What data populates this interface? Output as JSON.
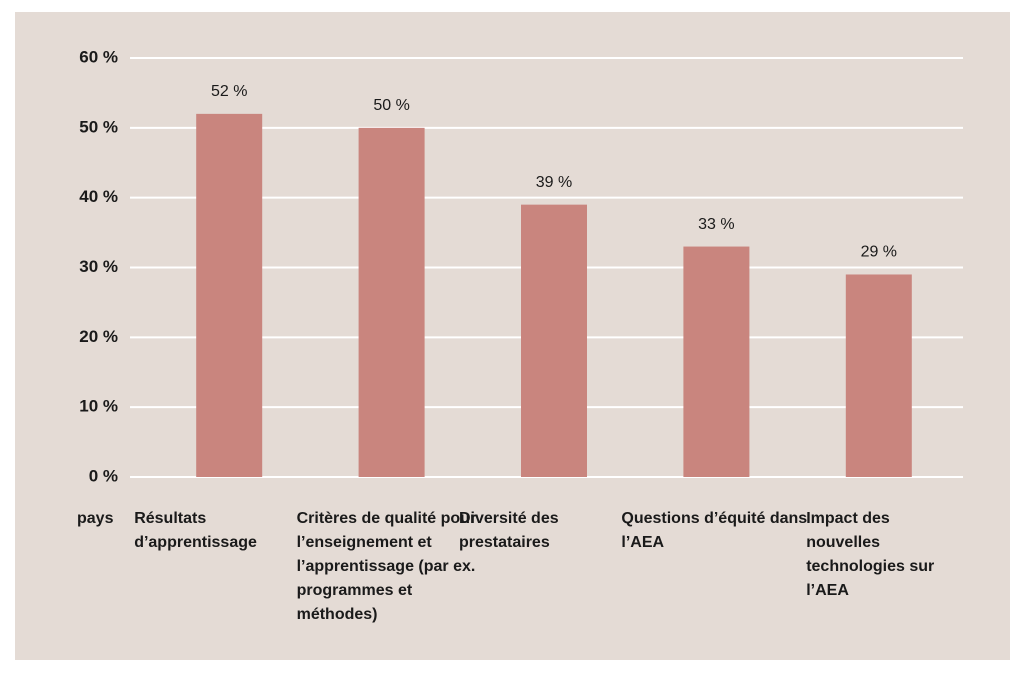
{
  "chart_data": {
    "type": "bar",
    "xlabel": "pays",
    "categories": [
      "Résultats d’apprentissage",
      "Critères de qualité pour l’enseignement et l’apprentissage (par ex. programmes et méthodes)",
      "Diversité des prestataires",
      "Questions d’équité dans l’AEA",
      "Impact des nouvelles technologies sur l’AEA"
    ],
    "values": [
      52,
      50,
      39,
      33,
      29
    ],
    "value_labels": [
      "52 %",
      "50 %",
      "39 %",
      "33 %",
      "29 %"
    ],
    "color": "#c9857e",
    "ylim": [
      0,
      60
    ],
    "yticks": [
      {
        "value": 0,
        "label": "0 %"
      },
      {
        "value": 10,
        "label": "10 %"
      },
      {
        "value": 20,
        "label": "20 %"
      },
      {
        "value": 30,
        "label": "30 %"
      },
      {
        "value": 40,
        "label": "40 %"
      },
      {
        "value": 50,
        "label": "50 %"
      },
      {
        "value": 60,
        "label": "60 %"
      }
    ],
    "grid": true
  }
}
